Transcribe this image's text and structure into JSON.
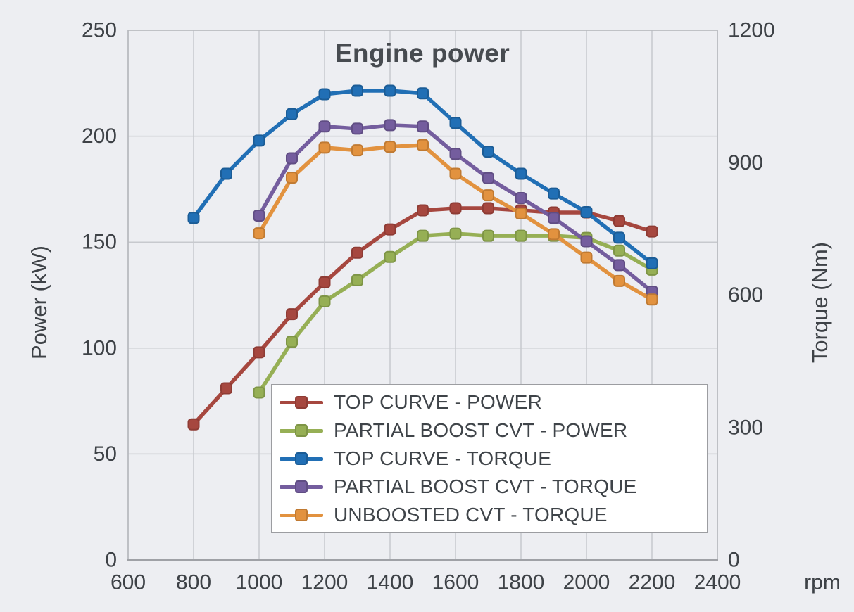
{
  "chart_data": {
    "type": "line",
    "title": "Engine power",
    "xlabel": "rpm",
    "ylabel_left": "Power (kW)",
    "ylabel_right": "Torque (Nm)",
    "x_range": [
      600,
      2400
    ],
    "y_left_range": [
      0,
      250
    ],
    "y_right_range": [
      0,
      1200
    ],
    "x_ticks": [
      600,
      800,
      1000,
      1200,
      1400,
      1600,
      1800,
      2000,
      2200,
      2400
    ],
    "y_left_ticks": [
      0,
      50,
      100,
      150,
      200,
      250
    ],
    "y_right_ticks": [
      0,
      300,
      600,
      900,
      1200
    ],
    "grid": true,
    "legend_position": "inside-bottom-center",
    "series": [
      {
        "name": "TOP CURVE - POWER",
        "axis": "left",
        "color": "#A6473F",
        "marker_edge": "#8E3B34",
        "x": [
          800,
          900,
          1000,
          1100,
          1200,
          1300,
          1400,
          1500,
          1600,
          1700,
          1800,
          1900,
          2000,
          2100,
          2200
        ],
        "values": [
          64,
          81,
          98,
          116,
          131,
          145,
          156,
          165,
          166,
          166,
          165,
          164,
          164,
          160,
          155
        ]
      },
      {
        "name": "PARTIAL BOOST CVT - POWER",
        "axis": "left",
        "color": "#96AF55",
        "marker_edge": "#7E9546",
        "x": [
          1000,
          1100,
          1200,
          1300,
          1400,
          1500,
          1600,
          1700,
          1800,
          1900,
          2000,
          2100,
          2200
        ],
        "values": [
          79,
          103,
          122,
          132,
          143,
          153,
          154,
          153,
          153,
          153,
          152,
          146,
          137
        ]
      },
      {
        "name": "TOP CURVE - TORQUE",
        "axis": "right",
        "color": "#216FB5",
        "marker_edge": "#1B5C96",
        "x": [
          800,
          900,
          1000,
          1100,
          1200,
          1300,
          1400,
          1500,
          1600,
          1700,
          1800,
          1900,
          2000,
          2100,
          2200
        ],
        "values": [
          775,
          875,
          950,
          1010,
          1055,
          1063,
          1063,
          1057,
          990,
          925,
          875,
          830,
          788,
          730,
          672
        ]
      },
      {
        "name": "PARTIAL BOOST CVT - TORQUE",
        "axis": "right",
        "color": "#745D9E",
        "marker_edge": "#604D84",
        "x": [
          1000,
          1100,
          1200,
          1300,
          1400,
          1500,
          1600,
          1700,
          1800,
          1900,
          2000,
          2100,
          2200
        ],
        "values": [
          780,
          910,
          982,
          977,
          985,
          982,
          920,
          865,
          820,
          775,
          722,
          668,
          608
        ]
      },
      {
        "name": "UNBOOSTED CVT - TORQUE",
        "axis": "right",
        "color": "#E2923F",
        "marker_edge": "#C07A32",
        "x": [
          1000,
          1100,
          1200,
          1300,
          1400,
          1500,
          1600,
          1700,
          1800,
          1900,
          2000,
          2100,
          2200
        ],
        "values": [
          740,
          866,
          934,
          928,
          936,
          940,
          875,
          826,
          785,
          738,
          685,
          632,
          590
        ]
      }
    ],
    "colors": {
      "background": "#EDEEF2",
      "gridline": "#C7C9CE",
      "frame": "#B7B9BE",
      "axis_line": "#9FA1A6",
      "tick_text": "#3E4247",
      "title_text": "#474B50",
      "legend_border": "#9C9DA1",
      "legend_background": "#FFFFFF"
    }
  }
}
